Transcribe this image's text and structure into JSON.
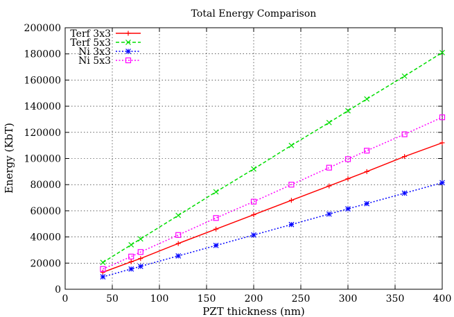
{
  "chart_data": {
    "type": "line",
    "title": "Total Energy Comparison",
    "xlabel": "PZT thickness (nm)",
    "ylabel": "Energy (KbT)",
    "xlim": [
      0,
      400
    ],
    "ylim": [
      0,
      200000
    ],
    "xticks": [
      0,
      50,
      100,
      150,
      200,
      250,
      300,
      350,
      400
    ],
    "yticks": [
      0,
      20000,
      40000,
      60000,
      80000,
      100000,
      120000,
      140000,
      160000,
      180000,
      200000
    ],
    "xtick_labels": [
      "0",
      "50",
      "100",
      "150",
      "200",
      "250",
      "300",
      "350",
      "400"
    ],
    "ytick_labels": [
      "0",
      "20000",
      "40000",
      "60000",
      "80000",
      "100000",
      "120000",
      "140000",
      "160000",
      "180000",
      "200000"
    ],
    "grid": true,
    "legend_position": "top-left",
    "x": [
      40,
      70,
      80,
      120,
      160,
      200,
      240,
      280,
      300,
      320,
      360,
      400
    ],
    "series": [
      {
        "name": "Terf 3x3",
        "color": "#ff0000",
        "dash": "solid",
        "marker": "plus",
        "values": [
          13000,
          21000,
          23500,
          35000,
          46000,
          57000,
          68000,
          79000,
          84500,
          90000,
          101500,
          112000
        ]
      },
      {
        "name": "Terf 5x3",
        "color": "#00dd00",
        "dash": "dashed",
        "marker": "cross",
        "values": [
          20500,
          34000,
          38500,
          56500,
          74500,
          92000,
          110000,
          127500,
          136500,
          145500,
          163000,
          181000
        ]
      },
      {
        "name": "Ni 3x3",
        "color": "#0000ff",
        "dash": "dotted",
        "marker": "star",
        "values": [
          9500,
          15500,
          17500,
          25500,
          33500,
          41500,
          49500,
          57500,
          61500,
          65500,
          73500,
          81500
        ]
      },
      {
        "name": "Ni 5x3",
        "color": "#ff00ff",
        "dash": "dotted",
        "marker": "open-square",
        "values": [
          15500,
          25000,
          28500,
          41500,
          54500,
          67000,
          80000,
          93000,
          99500,
          106000,
          118500,
          131500
        ]
      }
    ]
  }
}
